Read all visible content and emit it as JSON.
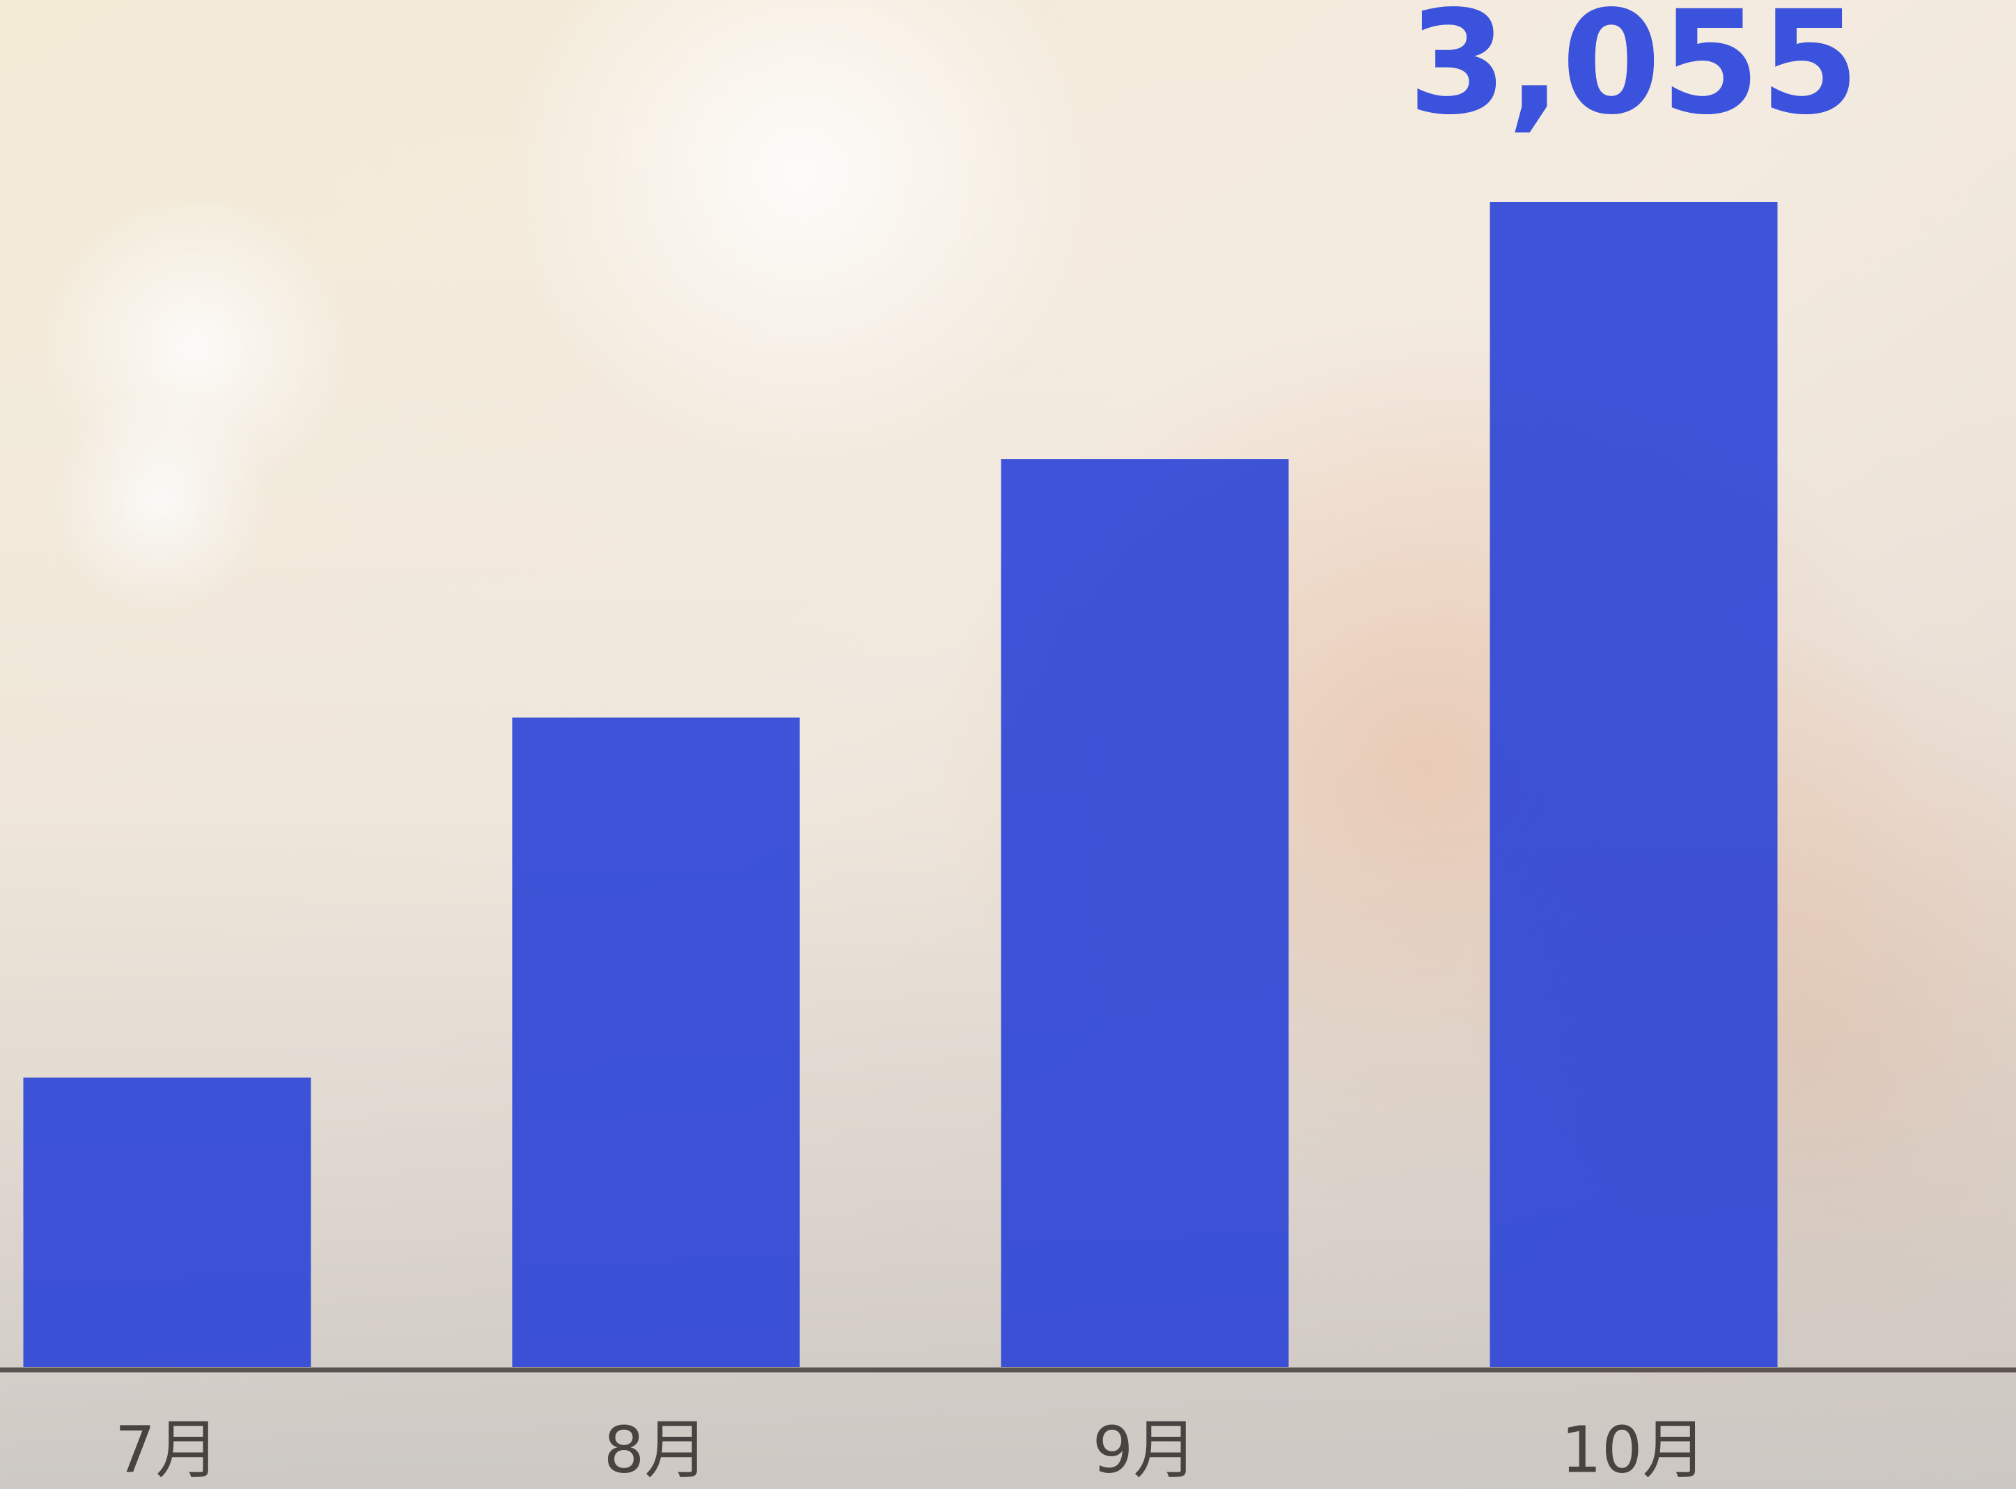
{
  "chart_data": {
    "type": "bar",
    "categories": [
      "7月",
      "8月",
      "9月",
      "10月"
    ],
    "values": [
      759,
      1703,
      2381,
      3055
    ],
    "value_labels": [
      null,
      null,
      null,
      "3,055"
    ],
    "color": "#2a43d6"
  }
}
